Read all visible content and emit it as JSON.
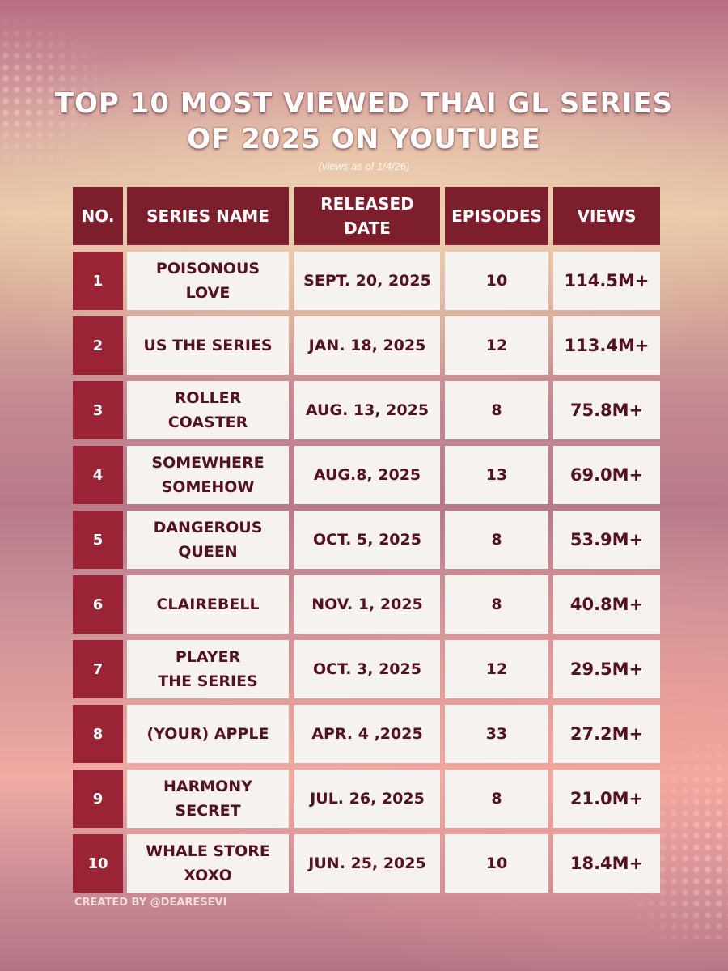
{
  "title_line1": "TOP 10 MOST VIEWED THAI GL SERIES",
  "title_line2": "OF 2025 ON YOUTUBE",
  "subtitle": "(views as of 1/4/26)",
  "headers": {
    "no": "NO.",
    "name": "SERIES NAME",
    "date_line1": "RELEASED",
    "date_line2": "DATE",
    "episodes": "EPISODES",
    "views": "VIEWS"
  },
  "rows": [
    {
      "no": "1",
      "name_line1": "POISONOUS",
      "name_line2": "LOVE",
      "date": "SEPT. 20, 2025",
      "episodes": "10",
      "views": "114.5M+"
    },
    {
      "no": "2",
      "name_line1": "US THE SERIES",
      "name_line2": "",
      "date": "JAN. 18, 2025",
      "episodes": "12",
      "views": "113.4M+"
    },
    {
      "no": "3",
      "name_line1": "ROLLER",
      "name_line2": "COASTER",
      "date": "AUG. 13, 2025",
      "episodes": "8",
      "views": "75.8M+"
    },
    {
      "no": "4",
      "name_line1": "SOMEWHERE",
      "name_line2": "SOMEHOW",
      "date": "AUG.8, 2025",
      "episodes": "13",
      "views": "69.0M+"
    },
    {
      "no": "5",
      "name_line1": "DANGEROUS",
      "name_line2": "QUEEN",
      "date": "OCT. 5, 2025",
      "episodes": "8",
      "views": "53.9M+"
    },
    {
      "no": "6",
      "name_line1": "CLAIREBELL",
      "name_line2": "",
      "date": "NOV. 1, 2025",
      "episodes": "8",
      "views": "40.8M+"
    },
    {
      "no": "7",
      "name_line1": "PLAYER",
      "name_line2": "THE SERIES",
      "date": "OCT. 3, 2025",
      "episodes": "12",
      "views": "29.5M+"
    },
    {
      "no": "8",
      "name_line1": "(YOUR) APPLE",
      "name_line2": "",
      "date": "APR. 4 ,2025",
      "episodes": "33",
      "views": "27.2M+"
    },
    {
      "no": "9",
      "name_line1": "HARMONY",
      "name_line2": "SECRET",
      "date": "JUL. 26, 2025",
      "episodes": "8",
      "views": "21.0M+"
    },
    {
      "no": "10",
      "name_line1": "WHALE STORE",
      "name_line2": "XOXO",
      "date": "JUN. 25, 2025",
      "episodes": "10",
      "views": "18.4M+"
    }
  ],
  "credit": "CREATED BY @DEARESEVI",
  "colors": {
    "header_bg": "#7c1e2c",
    "number_bg": "#9a2436",
    "cell_bg": "#f6f2ef",
    "cell_text": "#52131f"
  }
}
